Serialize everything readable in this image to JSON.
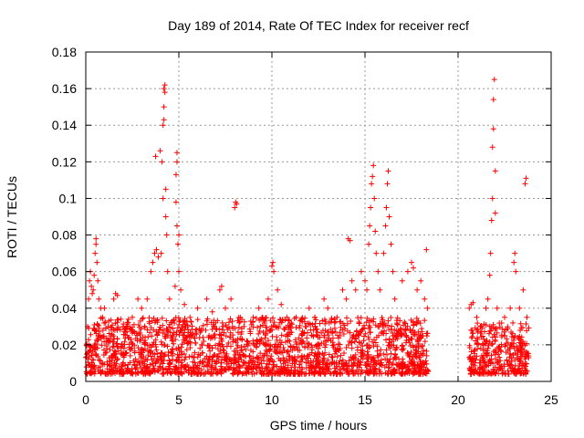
{
  "chart_data": {
    "type": "scatter",
    "title": "Day 189 of 2014, Rate Of TEC Index for receiver recf",
    "xlabel": "GPS time / hours",
    "ylabel": "ROTI / TECUs",
    "xlim": [
      0,
      25
    ],
    "ylim": [
      0,
      0.18
    ],
    "x_ticks": [
      0,
      5,
      10,
      15,
      20,
      25
    ],
    "x_tick_labels": [
      "0",
      "5",
      "10",
      "15",
      "20",
      "25"
    ],
    "y_ticks": [
      0,
      0.02,
      0.04,
      0.06,
      0.08,
      0.1,
      0.12,
      0.14,
      0.16,
      0.18
    ],
    "y_tick_labels": [
      "0",
      "0.02",
      "0.04",
      "0.06",
      "0.08",
      "0.1",
      "0.12",
      "0.14",
      "0.16",
      "0.18"
    ],
    "grid": true,
    "marker": "+",
    "series": [
      {
        "color": "#ff0000",
        "points": [
          [
            0.1,
            0.03
          ],
          [
            0.15,
            0.045
          ],
          [
            0.2,
            0.055
          ],
          [
            0.25,
            0.06
          ],
          [
            0.3,
            0.052
          ],
          [
            0.35,
            0.048
          ],
          [
            0.4,
            0.05
          ],
          [
            0.45,
            0.058
          ],
          [
            0.5,
            0.07
          ],
          [
            0.55,
            0.075
          ],
          [
            0.55,
            0.078
          ],
          [
            0.6,
            0.065
          ],
          [
            0.65,
            0.055
          ],
          [
            0.7,
            0.045
          ],
          [
            0.8,
            0.04
          ],
          [
            0.9,
            0.035
          ],
          [
            1.0,
            0.04
          ],
          [
            1.2,
            0.03
          ],
          [
            1.5,
            0.045
          ],
          [
            1.6,
            0.048
          ],
          [
            1.7,
            0.047
          ],
          [
            2.0,
            0.03
          ],
          [
            2.5,
            0.035
          ],
          [
            2.8,
            0.045
          ],
          [
            3.0,
            0.04
          ],
          [
            3.3,
            0.045
          ],
          [
            3.5,
            0.06
          ],
          [
            3.6,
            0.065
          ],
          [
            3.7,
            0.07
          ],
          [
            3.75,
            0.123
          ],
          [
            3.8,
            0.072
          ],
          [
            3.9,
            0.068
          ],
          [
            4.0,
            0.126
          ],
          [
            4.05,
            0.07
          ],
          [
            4.1,
            0.12
          ],
          [
            4.15,
            0.1
          ],
          [
            4.15,
            0.14
          ],
          [
            4.2,
            0.143
          ],
          [
            4.2,
            0.15
          ],
          [
            4.2,
            0.16
          ],
          [
            4.25,
            0.162
          ],
          [
            4.25,
            0.158
          ],
          [
            4.3,
            0.09
          ],
          [
            4.3,
            0.105
          ],
          [
            4.35,
            0.08
          ],
          [
            4.4,
            0.06
          ],
          [
            4.5,
            0.045
          ],
          [
            4.8,
            0.052
          ],
          [
            4.85,
            0.098
          ],
          [
            4.85,
            0.113
          ],
          [
            4.9,
            0.125
          ],
          [
            4.9,
            0.12
          ],
          [
            4.9,
            0.085
          ],
          [
            4.95,
            0.075
          ],
          [
            5.0,
            0.08
          ],
          [
            5.0,
            0.06
          ],
          [
            5.1,
            0.05
          ],
          [
            5.3,
            0.042
          ],
          [
            5.6,
            0.035
          ],
          [
            6.0,
            0.04
          ],
          [
            6.5,
            0.045
          ],
          [
            6.8,
            0.038
          ],
          [
            7.2,
            0.05
          ],
          [
            7.3,
            0.052
          ],
          [
            7.5,
            0.04
          ],
          [
            7.8,
            0.045
          ],
          [
            8.0,
            0.095
          ],
          [
            8.05,
            0.098
          ],
          [
            8.1,
            0.097
          ],
          [
            8.3,
            0.035
          ],
          [
            8.5,
            0.03
          ],
          [
            9.0,
            0.035
          ],
          [
            9.3,
            0.04
          ],
          [
            9.5,
            0.035
          ],
          [
            9.8,
            0.045
          ],
          [
            10.0,
            0.063
          ],
          [
            10.05,
            0.065
          ],
          [
            10.1,
            0.06
          ],
          [
            10.3,
            0.05
          ],
          [
            10.5,
            0.042
          ],
          [
            10.8,
            0.035
          ],
          [
            11.0,
            0.03
          ],
          [
            11.3,
            0.035
          ],
          [
            11.8,
            0.03
          ],
          [
            12.0,
            0.04
          ],
          [
            12.3,
            0.035
          ],
          [
            12.8,
            0.045
          ],
          [
            13.0,
            0.04
          ],
          [
            13.5,
            0.035
          ],
          [
            13.8,
            0.05
          ],
          [
            14.0,
            0.045
          ],
          [
            14.1,
            0.078
          ],
          [
            14.2,
            0.077
          ],
          [
            14.3,
            0.055
          ],
          [
            14.5,
            0.05
          ],
          [
            14.8,
            0.06
          ],
          [
            15.0,
            0.055
          ],
          [
            15.1,
            0.05
          ],
          [
            15.2,
            0.075
          ],
          [
            15.25,
            0.085
          ],
          [
            15.3,
            0.095
          ],
          [
            15.35,
            0.108
          ],
          [
            15.4,
            0.112
          ],
          [
            15.45,
            0.118
          ],
          [
            15.5,
            0.1
          ],
          [
            15.55,
            0.082
          ],
          [
            15.6,
            0.07
          ],
          [
            15.7,
            0.06
          ],
          [
            15.8,
            0.05
          ],
          [
            16.0,
            0.07
          ],
          [
            16.1,
            0.085
          ],
          [
            16.15,
            0.095
          ],
          [
            16.2,
            0.108
          ],
          [
            16.25,
            0.115
          ],
          [
            16.3,
            0.09
          ],
          [
            16.4,
            0.075
          ],
          [
            16.5,
            0.06
          ],
          [
            16.6,
            0.045
          ],
          [
            17.0,
            0.055
          ],
          [
            17.3,
            0.06
          ],
          [
            17.5,
            0.065
          ],
          [
            17.6,
            0.062
          ],
          [
            17.8,
            0.05
          ],
          [
            18.0,
            0.055
          ],
          [
            18.2,
            0.045
          ],
          [
            18.3,
            0.072
          ],
          [
            18.35,
            0.04
          ],
          [
            20.6,
            0.04
          ],
          [
            20.7,
            0.042
          ],
          [
            20.8,
            0.043
          ],
          [
            21.0,
            0.035
          ],
          [
            21.2,
            0.03
          ],
          [
            21.5,
            0.04
          ],
          [
            21.6,
            0.045
          ],
          [
            21.7,
            0.058
          ],
          [
            21.75,
            0.07
          ],
          [
            21.8,
            0.088
          ],
          [
            21.85,
            0.1
          ],
          [
            21.85,
            0.128
          ],
          [
            21.9,
            0.138
          ],
          [
            21.9,
            0.154
          ],
          [
            21.95,
            0.165
          ],
          [
            22.0,
            0.115
          ],
          [
            22.0,
            0.092
          ],
          [
            22.1,
            0.04
          ],
          [
            22.5,
            0.035
          ],
          [
            22.8,
            0.04
          ],
          [
            23.0,
            0.065
          ],
          [
            23.05,
            0.07
          ],
          [
            23.1,
            0.06
          ],
          [
            23.3,
            0.04
          ],
          [
            23.5,
            0.05
          ],
          [
            23.6,
            0.108
          ],
          [
            23.65,
            0.111
          ],
          [
            23.7,
            0.035
          ]
        ],
        "dense_bands": [
          {
            "x_start": 0.0,
            "x_end": 18.4,
            "low": 0.004,
            "high": 0.035
          },
          {
            "x_start": 20.6,
            "x_end": 23.8,
            "low": 0.004,
            "high": 0.032
          }
        ]
      }
    ]
  }
}
